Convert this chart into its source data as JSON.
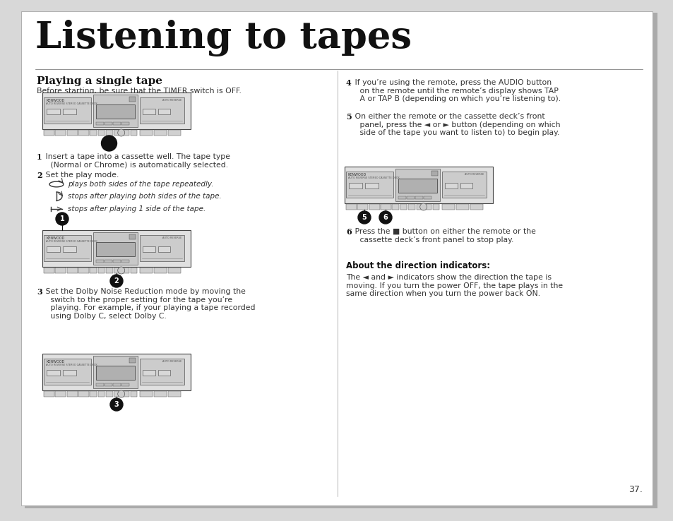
{
  "title": "Listening to tapes",
  "bg_color": "#ffffff",
  "page_bg": "#d8d8d8",
  "section1_title": "Playing a single tape",
  "section1_subtitle": "Before starting, be sure that the TIMER switch is OFF.",
  "step1_bold": "1",
  "step1_text": " Insert a tape into a cassette well. The tape type\n   (Normal or Chrome) is automatically selected.",
  "step2_bold": "2",
  "step2_text": " Set the play mode.",
  "mode1_text": "plays both sides of the tape repeatedly.",
  "mode2_text": "stops after playing both sides of the tape.",
  "mode3_text": "stops after playing 1 side of the tape.",
  "step3_bold": "3",
  "step3_text": " Set the Dolby Noise Reduction mode by moving the\n   switch to the proper setting for the tape you’re\n   playing. For example, if your playing a tape recorded\n   using Dolby C, select Dolby C.",
  "step4_bold": "4",
  "step4_text": " If you’re using the remote, press the AUDIO button\n   on the remote until the remote’s display shows TAP\n   A or TAP B (depending on which you’re listening to).",
  "step5_bold": "5",
  "step5_text": " On either the remote or the cassette deck’s front\n   panel, press the ◄ or ► button (depending on which\n   side of the tape you want to listen to) to begin play.",
  "step6_bold": "6",
  "step6_text": " Press the ■ button on either the remote or the\n   cassette deck’s front panel to stop play.",
  "direction_title": "About the direction indicators:",
  "direction_text": "The ◄ and ► indicators show the direction the tape is\nmoving. If you turn the power OFF, the tape plays in the\nsame direction when you turn the power back ON.",
  "page_num": "37."
}
